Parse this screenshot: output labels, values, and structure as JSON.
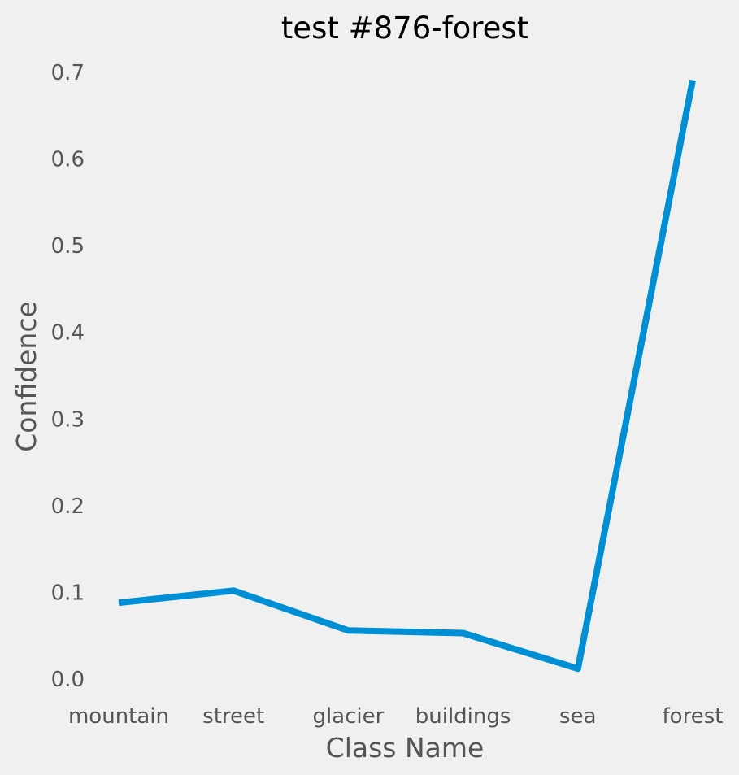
{
  "chart_data": {
    "type": "line",
    "title": "test #876-forest",
    "xlabel": "Class Name",
    "ylabel": "Confidence",
    "categories": [
      "mountain",
      "street",
      "glacier",
      "buildings",
      "sea",
      "forest"
    ],
    "series": [
      {
        "values": [
          0.088,
          0.102,
          0.056,
          0.053,
          0.012,
          0.691
        ]
      }
    ],
    "y_ticks": [
      "0.0",
      "0.1",
      "0.2",
      "0.3",
      "0.4",
      "0.5",
      "0.6",
      "0.7"
    ],
    "ylim": [
      0.0,
      0.7
    ],
    "grid": false,
    "legend": "none",
    "colors": {
      "line": "#008fd5",
      "background": "#f0f0f0",
      "tick_text": "#555555",
      "title_text": "#000000"
    }
  }
}
